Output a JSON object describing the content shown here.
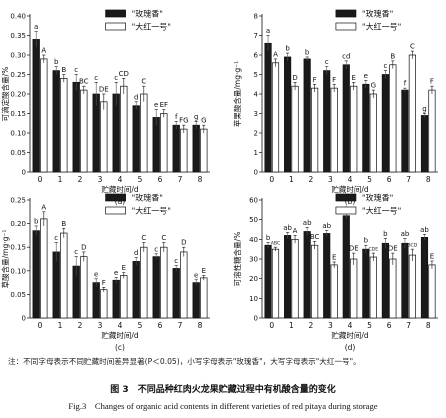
{
  "figure": {
    "note": "注：不同字母表示不同贮藏时间差异显著(P＜0.05)，小写字母表示\"玫瑰香\"，大写字母表示\"大红一号\"。",
    "caption_cn": "图 3　不同品种红肉火龙果贮藏过程中有机酸含量的变化",
    "caption_en": "Fig.3　Changes of organic acid contents in different varieties of red pitaya during storage",
    "colors": {
      "series1": "#1a1a1a",
      "series2": "#ffffff",
      "axis": "#111111"
    }
  },
  "chart_data": [
    {
      "type": "bar",
      "panel": "(a)",
      "ylabel": "可滴定酸含量/%",
      "xlabel": "贮藏时间/d",
      "ylim": [
        0,
        0.4
      ],
      "yticks": [
        "0",
        "0.05",
        "0.10",
        "0.15",
        "0.20",
        "0.25",
        "0.30",
        "0.35",
        "0.40"
      ],
      "categories": [
        "0",
        "1",
        "2",
        "3",
        "4",
        "5",
        "6",
        "7",
        "8"
      ],
      "series": [
        {
          "name": "\"玫瑰香\"",
          "values": [
            0.34,
            0.26,
            0.23,
            0.2,
            0.2,
            0.17,
            0.14,
            0.12,
            0.12
          ],
          "errors": [
            0.02,
            0.01,
            0.02,
            0.03,
            0.03,
            0.01,
            0.02,
            0.01,
            0.01
          ],
          "letters": [
            "a",
            "b",
            "c",
            "c",
            "c",
            "d",
            "e",
            "f",
            "g"
          ]
        },
        {
          "name": "\"大红一号\"",
          "values": [
            0.29,
            0.24,
            0.21,
            0.18,
            0.22,
            0.2,
            0.15,
            0.11,
            0.11
          ],
          "errors": [
            0.01,
            0.01,
            0.01,
            0.02,
            0.02,
            0.02,
            0.01,
            0.01,
            0.01
          ],
          "letters": [
            "A",
            "B",
            "BC",
            "DE",
            "CD",
            "C",
            "EF",
            "FG",
            "G"
          ]
        }
      ],
      "legend": "top-right"
    },
    {
      "type": "bar",
      "panel": "(b)",
      "ylabel": "苹果酸含量/mg·g⁻¹",
      "xlabel": "贮藏时间/d",
      "ylim": [
        0,
        8
      ],
      "yticks": [
        "0",
        "1",
        "2",
        "3",
        "4",
        "5",
        "6",
        "7",
        "8"
      ],
      "categories": [
        "0",
        "1",
        "2",
        "3",
        "4",
        "5",
        "6",
        "7",
        "8"
      ],
      "series": [
        {
          "name": "\"玫瑰香\"",
          "values": [
            6.6,
            5.9,
            5.8,
            5.2,
            5.5,
            4.5,
            5.0,
            4.2,
            2.9
          ],
          "errors": [
            0.4,
            0.2,
            0.1,
            0.2,
            0.2,
            0.2,
            0.2,
            0.1,
            0.1
          ],
          "letters": [
            "a",
            "b",
            "b",
            "c",
            "cd",
            "e",
            "c",
            "f",
            "g"
          ]
        },
        {
          "name": "\"大红一号\"",
          "values": [
            5.6,
            4.4,
            4.3,
            4.3,
            4.4,
            4.0,
            5.5,
            6.0,
            4.2
          ],
          "errors": [
            0.2,
            0.2,
            0.2,
            0.2,
            0.2,
            0.2,
            0.2,
            0.2,
            0.2
          ],
          "letters": [
            "A",
            "D",
            "F",
            "F",
            "E",
            "G",
            "B",
            "C",
            "F"
          ]
        }
      ],
      "legend": "top-right"
    },
    {
      "type": "bar",
      "panel": "(c)",
      "ylabel": "草酸含量/mg·g⁻¹",
      "xlabel": "贮藏时间/d",
      "ylim": [
        0,
        0.25
      ],
      "yticks": [
        "0",
        "0.05",
        "0.10",
        "0.15",
        "0.20",
        "0.25"
      ],
      "categories": [
        "0",
        "1",
        "2",
        "3",
        "4",
        "5",
        "6",
        "7",
        "8"
      ],
      "series": [
        {
          "name": "\"玫瑰香\"",
          "values": [
            0.185,
            0.14,
            0.11,
            0.075,
            0.08,
            0.12,
            0.13,
            0.105,
            0.075
          ],
          "errors": [
            0.01,
            0.02,
            0.02,
            0.008,
            0.006,
            0.008,
            0.006,
            0.006,
            0.006
          ],
          "letters": [
            "b",
            "c",
            "c",
            "e",
            "e",
            "d",
            "c",
            "c",
            "e"
          ]
        },
        {
          "name": "\"大红一号\"",
          "values": [
            0.21,
            0.18,
            0.13,
            0.06,
            0.09,
            0.15,
            0.15,
            0.14,
            0.085
          ],
          "errors": [
            0.015,
            0.01,
            0.01,
            0.005,
            0.006,
            0.01,
            0.01,
            0.01,
            0.005
          ],
          "letters": [
            "A",
            "B",
            "D",
            "F",
            "E",
            "C",
            "C",
            "D",
            "E"
          ]
        }
      ],
      "legend": "top-right"
    },
    {
      "type": "bar",
      "panel": "(d)",
      "ylabel": "可溶性糖含量/%",
      "xlabel": "贮藏时间/d",
      "ylim": [
        0,
        60
      ],
      "yticks": [
        "0",
        "10",
        "20",
        "30",
        "40",
        "50",
        "60"
      ],
      "categories": [
        "0",
        "1",
        "2",
        "3",
        "4",
        "5",
        "6",
        "7",
        "8"
      ],
      "series": [
        {
          "name": "\"玫瑰香\"",
          "values": [
            37,
            42,
            44,
            43,
            52,
            35,
            38,
            38,
            41
          ],
          "errors": [
            1.5,
            1.5,
            2.0,
            1.5,
            1.5,
            2.0,
            2.5,
            2.5,
            1.5
          ],
          "letters": [
            "b",
            "ab",
            "ab",
            "ab",
            "a",
            "b",
            "b",
            "ab",
            "ab"
          ]
        },
        {
          "name": "\"大红一号\"",
          "values": [
            35,
            40,
            37,
            27,
            30,
            31,
            30,
            32,
            27
          ],
          "errors": [
            1.0,
            2.0,
            2.0,
            1.5,
            3.0,
            2.0,
            3.0,
            3.0,
            2.0
          ],
          "letters": [
            "ABC",
            "A",
            "BC",
            "E",
            "DE",
            "CDE",
            "DE",
            "BCD",
            "E"
          ]
        }
      ],
      "legend": "top-right"
    }
  ]
}
